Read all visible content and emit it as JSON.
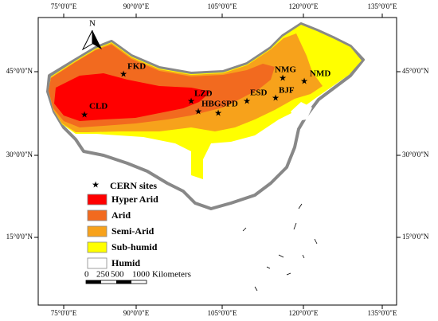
{
  "graticule": {
    "top": [
      "75°0'0\"E",
      "90°0'0\"E",
      "105°0'0\"E",
      "120°0'0\"E",
      "135°0'0\"E"
    ],
    "bottom": [
      "75°0'0\"E",
      "90°0'0\"E",
      "105°0'0\"E",
      "120°0'0\"E",
      "135°0'0\"E"
    ],
    "left": [
      "45°0'0\"N",
      "30°0'0\"N",
      "15°0'0\"N"
    ],
    "right": [
      "45°0'0\"N",
      "30°0'0\"N",
      "15°0'0\"N"
    ]
  },
  "north": "N",
  "sites": [
    "CLD",
    "FKD",
    "LZD",
    "HBG",
    "SPD",
    "ESD",
    "BJF",
    "NMG",
    "NMD"
  ],
  "legend": {
    "sites": "CERN sites",
    "classes": [
      {
        "label": "Hyper Arid",
        "color": "#ff0000"
      },
      {
        "label": "Arid",
        "color": "#f26a1f"
      },
      {
        "label": "Semi-Arid",
        "color": "#f7a21b"
      },
      {
        "label": "Sub-humid",
        "color": "#ffff00"
      },
      {
        "label": "Humid",
        "color": "#ffffff"
      }
    ]
  },
  "scale": [
    "0",
    "250",
    "500",
    "1000",
    "Kilometers"
  ]
}
